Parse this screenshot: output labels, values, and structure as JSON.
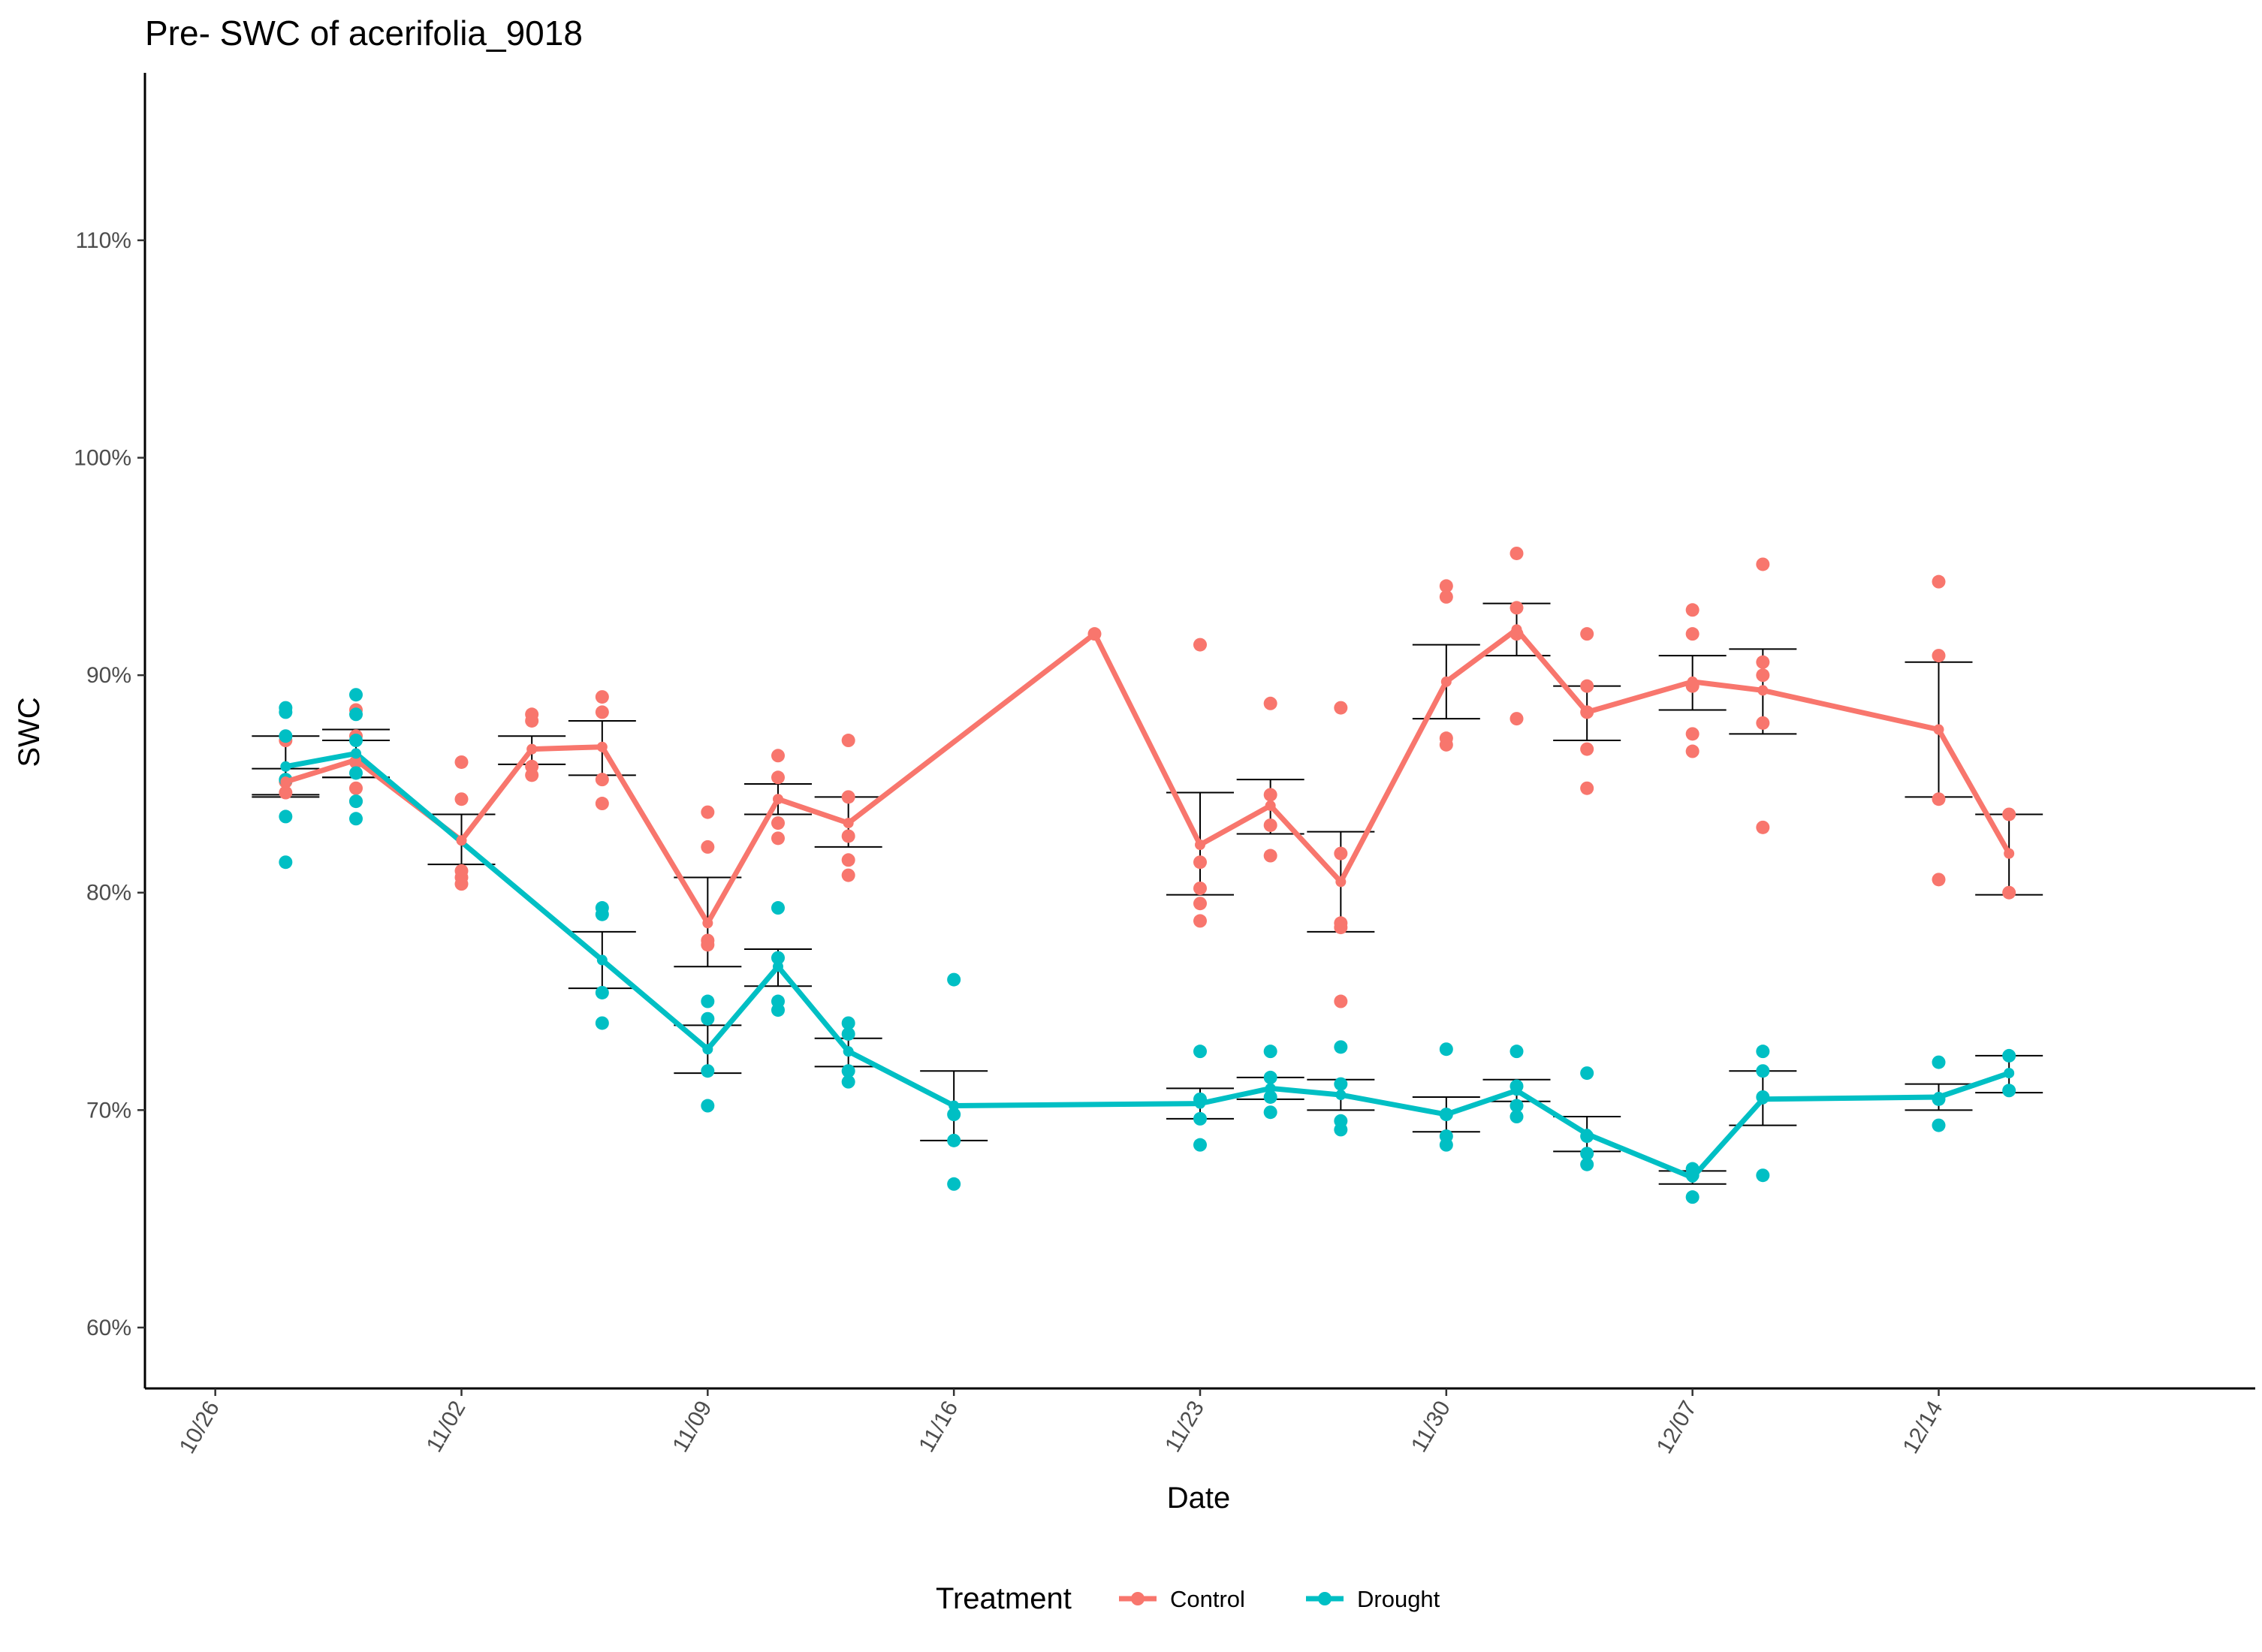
{
  "chart_data": {
    "type": "line",
    "title": "Pre- SWC of acerifolia_9018",
    "xlabel": "Date",
    "ylabel": "SWC",
    "x_axis": {
      "type": "date",
      "range": [
        "2021-10-24",
        "2021-12-23"
      ],
      "ticks": [
        {
          "date": "2021-10-26",
          "label": "10/26"
        },
        {
          "date": "2021-11-02",
          "label": "11/02"
        },
        {
          "date": "2021-11-09",
          "label": "11/09"
        },
        {
          "date": "2021-11-16",
          "label": "11/16"
        },
        {
          "date": "2021-11-23",
          "label": "11/23"
        },
        {
          "date": "2021-11-30",
          "label": "11/30"
        },
        {
          "date": "2021-12-07",
          "label": "12/07"
        },
        {
          "date": "2021-12-14",
          "label": "12/14"
        }
      ]
    },
    "y_axis": {
      "range": [
        57.2,
        117.7
      ],
      "ticks": [
        {
          "value": 60,
          "label": "60%"
        },
        {
          "value": 70,
          "label": "70%"
        },
        {
          "value": 80,
          "label": "80%"
        },
        {
          "value": 90,
          "label": "90%"
        },
        {
          "value": 100,
          "label": "100%"
        },
        {
          "value": 110,
          "label": "110%"
        }
      ]
    },
    "grid": false,
    "legend": {
      "title": "Treatment",
      "position": "bottom"
    },
    "series": [
      {
        "name": "Control",
        "color": "#F8766D",
        "means": [
          {
            "x": "2021-10-28",
            "y": 85.1,
            "lo": 84.5,
            "hi": 85.7
          },
          {
            "x": "2021-10-30",
            "y": 86.1,
            "lo": 85.3,
            "hi": 87.0
          },
          {
            "x": "2021-11-02",
            "y": 82.4,
            "lo": 81.3,
            "hi": 83.6
          },
          {
            "x": "2021-11-04",
            "y": 86.6,
            "lo": 85.9,
            "hi": 87.2
          },
          {
            "x": "2021-11-06",
            "y": 86.7,
            "lo": 85.4,
            "hi": 87.9
          },
          {
            "x": "2021-11-09",
            "y": 78.6,
            "lo": 76.6,
            "hi": 80.7
          },
          {
            "x": "2021-11-11",
            "y": 84.3,
            "lo": 83.6,
            "hi": 85.0
          },
          {
            "x": "2021-11-13",
            "y": 83.2,
            "lo": 82.1,
            "hi": 84.4
          },
          {
            "x": "2021-11-20",
            "y": 91.9,
            "lo": null,
            "hi": null
          },
          {
            "x": "2021-11-23",
            "y": 82.2,
            "lo": 79.9,
            "hi": 84.6
          },
          {
            "x": "2021-11-25",
            "y": 84.0,
            "lo": 82.7,
            "hi": 85.2
          },
          {
            "x": "2021-11-27",
            "y": 80.5,
            "lo": 78.2,
            "hi": 82.8
          },
          {
            "x": "2021-11-30",
            "y": 89.7,
            "lo": 88.0,
            "hi": 91.4
          },
          {
            "x": "2021-12-02",
            "y": 92.1,
            "lo": 90.9,
            "hi": 93.3
          },
          {
            "x": "2021-12-04",
            "y": 88.3,
            "lo": 87.0,
            "hi": 89.5
          },
          {
            "x": "2021-12-07",
            "y": 89.7,
            "lo": 88.4,
            "hi": 90.9
          },
          {
            "x": "2021-12-09",
            "y": 89.3,
            "lo": 87.3,
            "hi": 91.2
          },
          {
            "x": "2021-12-14",
            "y": 87.5,
            "lo": 84.4,
            "hi": 90.6
          },
          {
            "x": "2021-12-16",
            "y": 81.8,
            "lo": 79.9,
            "hi": 83.6
          }
        ],
        "points": [
          {
            "x": "2021-10-28",
            "y": 87.0
          },
          {
            "x": "2021-10-28",
            "y": 85.1
          },
          {
            "x": "2021-10-28",
            "y": 84.6
          },
          {
            "x": "2021-10-30",
            "y": 88.4
          },
          {
            "x": "2021-10-30",
            "y": 87.2
          },
          {
            "x": "2021-10-30",
            "y": 86.0
          },
          {
            "x": "2021-10-30",
            "y": 84.8
          },
          {
            "x": "2021-10-30",
            "y": 84.2
          },
          {
            "x": "2021-11-02",
            "y": 86.0
          },
          {
            "x": "2021-11-02",
            "y": 84.3
          },
          {
            "x": "2021-11-02",
            "y": 81.0
          },
          {
            "x": "2021-11-02",
            "y": 80.7
          },
          {
            "x": "2021-11-02",
            "y": 80.4
          },
          {
            "x": "2021-11-04",
            "y": 88.2
          },
          {
            "x": "2021-11-04",
            "y": 87.9
          },
          {
            "x": "2021-11-04",
            "y": 85.8
          },
          {
            "x": "2021-11-04",
            "y": 85.4
          },
          {
            "x": "2021-11-06",
            "y": 89.0
          },
          {
            "x": "2021-11-06",
            "y": 88.3
          },
          {
            "x": "2021-11-06",
            "y": 85.2
          },
          {
            "x": "2021-11-06",
            "y": 84.1
          },
          {
            "x": "2021-11-09",
            "y": 83.7
          },
          {
            "x": "2021-11-09",
            "y": 82.1
          },
          {
            "x": "2021-11-09",
            "y": 77.8
          },
          {
            "x": "2021-11-09",
            "y": 77.6
          },
          {
            "x": "2021-11-11",
            "y": 86.3
          },
          {
            "x": "2021-11-11",
            "y": 85.3
          },
          {
            "x": "2021-11-11",
            "y": 83.2
          },
          {
            "x": "2021-11-11",
            "y": 82.5
          },
          {
            "x": "2021-11-13",
            "y": 87.0
          },
          {
            "x": "2021-11-13",
            "y": 84.4
          },
          {
            "x": "2021-11-13",
            "y": 82.6
          },
          {
            "x": "2021-11-13",
            "y": 81.5
          },
          {
            "x": "2021-11-13",
            "y": 80.8
          },
          {
            "x": "2021-11-20",
            "y": 91.9
          },
          {
            "x": "2021-11-23",
            "y": 91.4
          },
          {
            "x": "2021-11-23",
            "y": 81.4
          },
          {
            "x": "2021-11-23",
            "y": 80.2
          },
          {
            "x": "2021-11-23",
            "y": 79.5
          },
          {
            "x": "2021-11-23",
            "y": 78.7
          },
          {
            "x": "2021-11-25",
            "y": 88.7
          },
          {
            "x": "2021-11-25",
            "y": 84.5
          },
          {
            "x": "2021-11-25",
            "y": 83.1
          },
          {
            "x": "2021-11-25",
            "y": 81.7
          },
          {
            "x": "2021-11-27",
            "y": 88.5
          },
          {
            "x": "2021-11-27",
            "y": 81.8
          },
          {
            "x": "2021-11-27",
            "y": 78.6
          },
          {
            "x": "2021-11-27",
            "y": 78.4
          },
          {
            "x": "2021-11-27",
            "y": 75.0
          },
          {
            "x": "2021-11-30",
            "y": 94.1
          },
          {
            "x": "2021-11-30",
            "y": 93.6
          },
          {
            "x": "2021-11-30",
            "y": 87.1
          },
          {
            "x": "2021-11-30",
            "y": 86.8
          },
          {
            "x": "2021-12-02",
            "y": 95.6
          },
          {
            "x": "2021-12-02",
            "y": 93.1
          },
          {
            "x": "2021-12-02",
            "y": 91.9
          },
          {
            "x": "2021-12-02",
            "y": 88.0
          },
          {
            "x": "2021-12-04",
            "y": 91.9
          },
          {
            "x": "2021-12-04",
            "y": 89.5
          },
          {
            "x": "2021-12-04",
            "y": 88.3
          },
          {
            "x": "2021-12-04",
            "y": 86.6
          },
          {
            "x": "2021-12-04",
            "y": 84.8
          },
          {
            "x": "2021-12-07",
            "y": 93.0
          },
          {
            "x": "2021-12-07",
            "y": 91.9
          },
          {
            "x": "2021-12-07",
            "y": 89.5
          },
          {
            "x": "2021-12-07",
            "y": 87.3
          },
          {
            "x": "2021-12-07",
            "y": 86.5
          },
          {
            "x": "2021-12-09",
            "y": 95.1
          },
          {
            "x": "2021-12-09",
            "y": 90.6
          },
          {
            "x": "2021-12-09",
            "y": 90.0
          },
          {
            "x": "2021-12-09",
            "y": 87.8
          },
          {
            "x": "2021-12-09",
            "y": 83.0
          },
          {
            "x": "2021-12-14",
            "y": 94.3
          },
          {
            "x": "2021-12-14",
            "y": 90.9
          },
          {
            "x": "2021-12-14",
            "y": 84.3
          },
          {
            "x": "2021-12-14",
            "y": 80.6
          },
          {
            "x": "2021-12-16",
            "y": 83.6
          },
          {
            "x": "2021-12-16",
            "y": 80.0
          }
        ]
      },
      {
        "name": "Drought",
        "color": "#00BFC4",
        "means": [
          {
            "x": "2021-10-28",
            "y": 85.8,
            "lo": 84.4,
            "hi": 87.2
          },
          {
            "x": "2021-10-30",
            "y": 86.4,
            "lo": 85.3,
            "hi": 87.5
          },
          {
            "x": "2021-11-06",
            "y": 76.9,
            "lo": 75.6,
            "hi": 78.2
          },
          {
            "x": "2021-11-09",
            "y": 72.8,
            "lo": 71.7,
            "hi": 73.9
          },
          {
            "x": "2021-11-11",
            "y": 76.6,
            "lo": 75.7,
            "hi": 77.4
          },
          {
            "x": "2021-11-13",
            "y": 72.7,
            "lo": 72.0,
            "hi": 73.3
          },
          {
            "x": "2021-11-16",
            "y": 70.2,
            "lo": 68.6,
            "hi": 71.8
          },
          {
            "x": "2021-11-23",
            "y": 70.3,
            "lo": 69.6,
            "hi": 71.0
          },
          {
            "x": "2021-11-25",
            "y": 71.0,
            "lo": 70.5,
            "hi": 71.5
          },
          {
            "x": "2021-11-27",
            "y": 70.7,
            "lo": 70.0,
            "hi": 71.4
          },
          {
            "x": "2021-11-30",
            "y": 69.8,
            "lo": 69.0,
            "hi": 70.6
          },
          {
            "x": "2021-12-02",
            "y": 70.9,
            "lo": 70.4,
            "hi": 71.4
          },
          {
            "x": "2021-12-04",
            "y": 68.9,
            "lo": 68.1,
            "hi": 69.7
          },
          {
            "x": "2021-12-07",
            "y": 66.9,
            "lo": 66.6,
            "hi": 67.2
          },
          {
            "x": "2021-12-09",
            "y": 70.5,
            "lo": 69.3,
            "hi": 71.8
          },
          {
            "x": "2021-12-14",
            "y": 70.6,
            "lo": 70.0,
            "hi": 71.2
          },
          {
            "x": "2021-12-16",
            "y": 71.7,
            "lo": 70.8,
            "hi": 72.5
          }
        ],
        "points": [
          {
            "x": "2021-10-28",
            "y": 88.5
          },
          {
            "x": "2021-10-28",
            "y": 88.3
          },
          {
            "x": "2021-10-28",
            "y": 87.2
          },
          {
            "x": "2021-10-28",
            "y": 85.2
          },
          {
            "x": "2021-10-28",
            "y": 83.5
          },
          {
            "x": "2021-10-28",
            "y": 81.4
          },
          {
            "x": "2021-10-30",
            "y": 89.1
          },
          {
            "x": "2021-10-30",
            "y": 88.2
          },
          {
            "x": "2021-10-30",
            "y": 87.0
          },
          {
            "x": "2021-10-30",
            "y": 85.5
          },
          {
            "x": "2021-10-30",
            "y": 84.2
          },
          {
            "x": "2021-10-30",
            "y": 83.4
          },
          {
            "x": "2021-11-06",
            "y": 79.3
          },
          {
            "x": "2021-11-06",
            "y": 79.0
          },
          {
            "x": "2021-11-06",
            "y": 75.4
          },
          {
            "x": "2021-11-06",
            "y": 74.0
          },
          {
            "x": "2021-11-09",
            "y": 75.0
          },
          {
            "x": "2021-11-09",
            "y": 74.2
          },
          {
            "x": "2021-11-09",
            "y": 71.8
          },
          {
            "x": "2021-11-09",
            "y": 70.2
          },
          {
            "x": "2021-11-11",
            "y": 79.3
          },
          {
            "x": "2021-11-11",
            "y": 77.0
          },
          {
            "x": "2021-11-11",
            "y": 75.0
          },
          {
            "x": "2021-11-11",
            "y": 74.6
          },
          {
            "x": "2021-11-13",
            "y": 74.0
          },
          {
            "x": "2021-11-13",
            "y": 73.5
          },
          {
            "x": "2021-11-13",
            "y": 71.8
          },
          {
            "x": "2021-11-13",
            "y": 71.3
          },
          {
            "x": "2021-11-16",
            "y": 76.0
          },
          {
            "x": "2021-11-16",
            "y": 69.8
          },
          {
            "x": "2021-11-16",
            "y": 68.6
          },
          {
            "x": "2021-11-16",
            "y": 66.6
          },
          {
            "x": "2021-11-23",
            "y": 72.7
          },
          {
            "x": "2021-11-23",
            "y": 70.5
          },
          {
            "x": "2021-11-23",
            "y": 69.6
          },
          {
            "x": "2021-11-23",
            "y": 68.4
          },
          {
            "x": "2021-11-25",
            "y": 72.7
          },
          {
            "x": "2021-11-25",
            "y": 71.5
          },
          {
            "x": "2021-11-25",
            "y": 70.6
          },
          {
            "x": "2021-11-25",
            "y": 69.9
          },
          {
            "x": "2021-11-27",
            "y": 72.9
          },
          {
            "x": "2021-11-27",
            "y": 71.2
          },
          {
            "x": "2021-11-27",
            "y": 69.5
          },
          {
            "x": "2021-11-27",
            "y": 69.1
          },
          {
            "x": "2021-11-30",
            "y": 72.8
          },
          {
            "x": "2021-11-30",
            "y": 69.8
          },
          {
            "x": "2021-11-30",
            "y": 68.8
          },
          {
            "x": "2021-11-30",
            "y": 68.4
          },
          {
            "x": "2021-12-02",
            "y": 72.7
          },
          {
            "x": "2021-12-02",
            "y": 71.1
          },
          {
            "x": "2021-12-02",
            "y": 70.2
          },
          {
            "x": "2021-12-02",
            "y": 69.7
          },
          {
            "x": "2021-12-04",
            "y": 71.7
          },
          {
            "x": "2021-12-04",
            "y": 68.8
          },
          {
            "x": "2021-12-04",
            "y": 68.0
          },
          {
            "x": "2021-12-04",
            "y": 67.5
          },
          {
            "x": "2021-12-07",
            "y": 67.3
          },
          {
            "x": "2021-12-07",
            "y": 67.0
          },
          {
            "x": "2021-12-07",
            "y": 66.0
          },
          {
            "x": "2021-12-09",
            "y": 72.7
          },
          {
            "x": "2021-12-09",
            "y": 71.8
          },
          {
            "x": "2021-12-09",
            "y": 70.6
          },
          {
            "x": "2021-12-09",
            "y": 67.0
          },
          {
            "x": "2021-12-14",
            "y": 72.2
          },
          {
            "x": "2021-12-14",
            "y": 70.5
          },
          {
            "x": "2021-12-14",
            "y": 69.3
          },
          {
            "x": "2021-12-16",
            "y": 72.5
          },
          {
            "x": "2021-12-16",
            "y": 70.9
          }
        ]
      }
    ]
  }
}
